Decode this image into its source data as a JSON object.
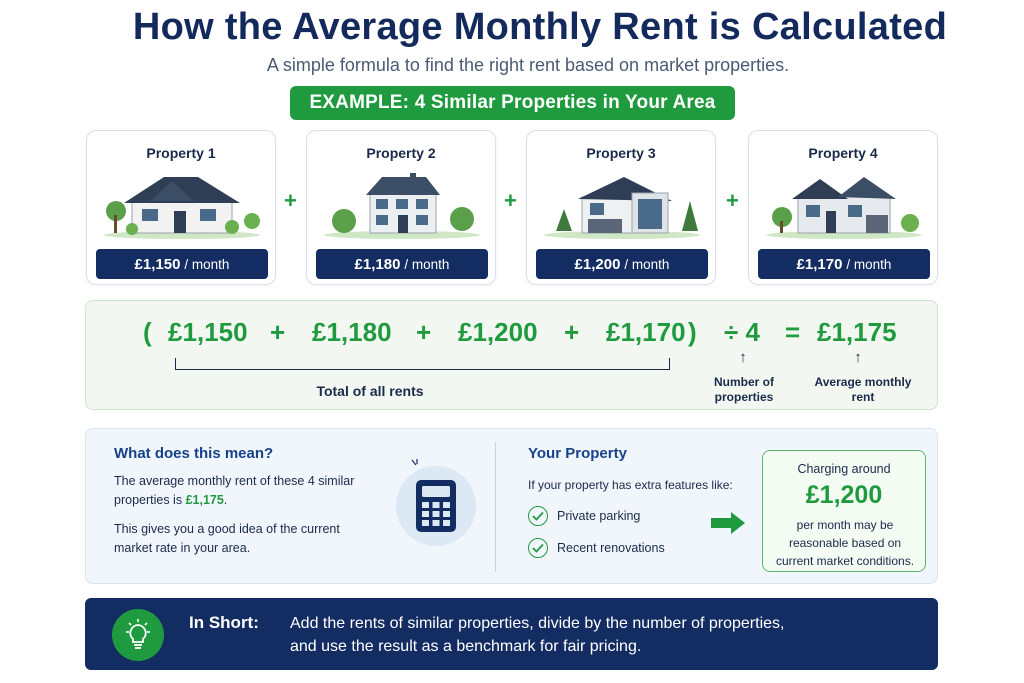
{
  "header": {
    "title": "How the Average Monthly Rent is Calculated",
    "subtitle": "A simple formula to find the right rent based on market properties.",
    "example_label": "EXAMPLE: 4 Similar Properties in Your Area"
  },
  "properties": [
    {
      "name": "Property 1",
      "amount": "£1,150",
      "period": "/ month"
    },
    {
      "name": "Property 2",
      "amount": "£1,180",
      "period": "/ month"
    },
    {
      "name": "Property 3",
      "amount": "£1,200",
      "period": "/ month"
    },
    {
      "name": "Property 4",
      "amount": "£1,170",
      "period": "/ month"
    }
  ],
  "plus": "+",
  "formula": {
    "open_paren": "(",
    "close_paren": ")",
    "values": [
      "£1,150",
      "£1,180",
      "£1,200",
      "£1,170"
    ],
    "plus": "+",
    "divide": "÷ 4",
    "equals": "=",
    "result": "£1,175",
    "total_label": "Total of all rents",
    "arrow": "↑",
    "divisor_label_1": "Number of",
    "divisor_label_2": "properties",
    "result_label_1": "Average monthly",
    "result_label_2": "rent"
  },
  "meaning": {
    "heading": "What does this mean?",
    "line1": "The average monthly rent of these 4 similar",
    "line2_prefix": "properties is ",
    "line2_value": "£1,175",
    "line2_suffix": ".",
    "line3": "This gives you a good idea of the current",
    "line4": "market rate in your area."
  },
  "your_property": {
    "heading": "Your Property",
    "intro": "If your property has extra features like:",
    "features": [
      "Private parking",
      "Recent renovations"
    ],
    "result_top": "Charging around",
    "result_amount": "£1,200",
    "result_line1": "per month may be",
    "result_line2": "reasonable based on",
    "result_line3": "current market conditions."
  },
  "in_short": {
    "label": "In Short:",
    "line1": "Add the rents of similar properties, divide by the number of properties,",
    "line2": "and use the result as a benchmark for fair pricing."
  },
  "colors": {
    "navy": "#132d63",
    "green": "#1f9a3e",
    "title": "#142a5c"
  }
}
